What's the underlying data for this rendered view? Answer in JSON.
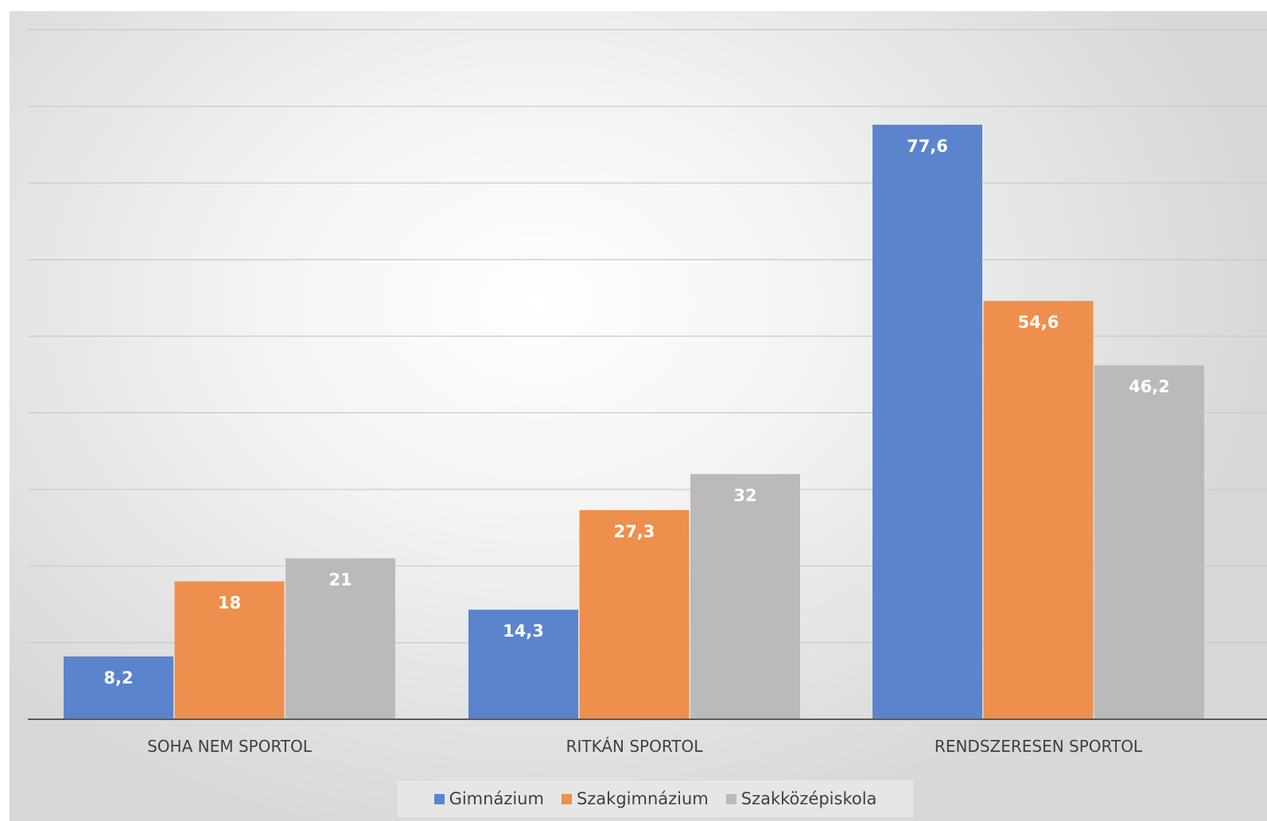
{
  "chart_data": {
    "type": "bar",
    "categories": [
      "SOHA NEM SPORTOL",
      "RITKÁN SPORTOL",
      "RENDSZERESEN SPORTOL"
    ],
    "series": [
      {
        "name": "Gimnázium",
        "color": "#5B84CC",
        "values": [
          8.2,
          14.3,
          77.6
        ],
        "labels": [
          "8,2",
          "14,3",
          "77,6"
        ]
      },
      {
        "name": "Szakgimnázium",
        "color": "#EE8F4D",
        "values": [
          18,
          27.3,
          54.6
        ],
        "labels": [
          "18",
          "27,3",
          "54,6"
        ]
      },
      {
        "name": "Szakközépiskola",
        "color": "#BABABC",
        "values": [
          21,
          32,
          46.2
        ],
        "labels": [
          "21",
          "32",
          "46,2"
        ]
      }
    ],
    "ylim": [
      0,
      90
    ],
    "gridlines": true,
    "y_axis_labels_shown": false,
    "legend_position": "bottom"
  }
}
